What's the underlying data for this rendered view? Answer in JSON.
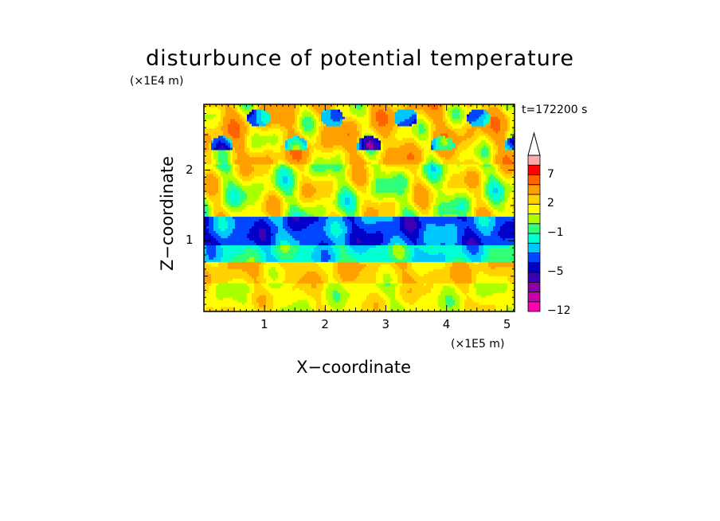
{
  "chart_data": {
    "type": "heatmap",
    "title": "disturbunce of potential temperature",
    "xlabel": "X−coordinate",
    "ylabel": "Z−coordinate",
    "x_unit": "(×1E5 m)",
    "y_unit": "(×1E4 m)",
    "time_label": "t=172200 s",
    "xlim": [
      0,
      5.12
    ],
    "ylim": [
      0,
      2.93
    ],
    "x_ticks": [
      1,
      2,
      3,
      4,
      5
    ],
    "y_ticks": [
      1,
      2
    ],
    "colorbar": {
      "levels": [
        -12,
        -10,
        -8,
        -6,
        -5,
        -4,
        -3,
        -2,
        -1,
        0,
        1,
        2,
        3,
        5,
        7,
        9,
        11
      ],
      "labeled_levels": [
        "−12",
        "−5",
        "−1",
        "2",
        "7"
      ],
      "colors": [
        "#ff00b4",
        "#c800a8",
        "#8c00a8",
        "#3c00b4",
        "#0000c8",
        "#0046ff",
        "#00c8ff",
        "#00ffd2",
        "#32ff78",
        "#aaff00",
        "#ffff00",
        "#ffd200",
        "#ffa000",
        "#ff6400",
        "#ff0000",
        "#ffaaaa"
      ],
      "extend": "max",
      "extend_color": "#ffffff"
    },
    "bands": [
      {
        "z": [
          0.0,
          0.4
        ],
        "value": 1.5
      },
      {
        "z": [
          0.4,
          0.7
        ],
        "value": 2.5
      },
      {
        "z": [
          0.7,
          0.95
        ],
        "value": -1.5
      },
      {
        "z": [
          0.95,
          1.35
        ],
        "value": -3.5
      },
      {
        "z": [
          1.35,
          2.1
        ],
        "value": 1.2
      },
      {
        "z": [
          2.1,
          2.93
        ],
        "value": 2.6
      }
    ],
    "grid": false,
    "legend": "colorbar-right"
  }
}
